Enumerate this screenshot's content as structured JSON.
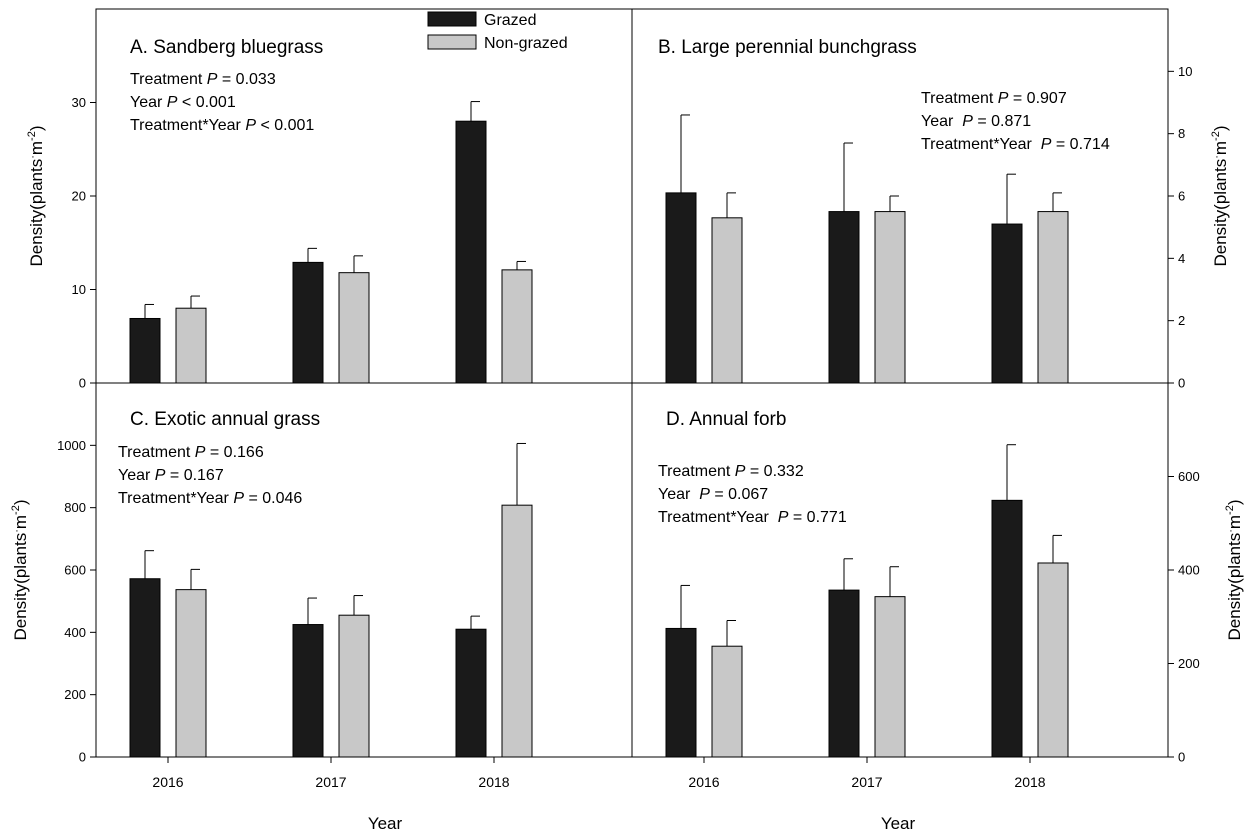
{
  "chart_data": {
    "type": "bar",
    "categories": [
      "2016",
      "2017",
      "2018"
    ],
    "xlabel": "Year",
    "legend": {
      "placement": "top-center of panel A",
      "entries": [
        "Grazed",
        "Non-grazed"
      ]
    },
    "colors": {
      "Grazed": "#1a1a1a",
      "Non-grazed": "#c8c8c8"
    },
    "panels": [
      {
        "title": "A. Sandberg bluegrass",
        "ylabel": "Density(plants·m⁻²)",
        "ylim": [
          0,
          40
        ],
        "yticks": [
          "0",
          "10",
          "20",
          "30"
        ],
        "stats": [
          {
            "prefix": "Treatment ",
            "p": "P",
            "rest": " = 0.033"
          },
          {
            "prefix": "Year ",
            "p": "P",
            "rest": " < 0.001"
          },
          {
            "prefix": "Treatment*Year ",
            "p": "P",
            "rest": " < 0.001"
          }
        ],
        "series": [
          {
            "name": "Grazed",
            "values": [
              6.9,
              12.9,
              28.0
            ],
            "errors": [
              1.5,
              1.5,
              2.1
            ]
          },
          {
            "name": "Non-grazed",
            "values": [
              8.0,
              11.8,
              12.1
            ],
            "errors": [
              1.3,
              1.8,
              0.9
            ]
          }
        ]
      },
      {
        "title": "B. Large perennial bunchgrass",
        "ylabel": "Density(plants·m⁻²)",
        "ylim": [
          0,
          12
        ],
        "yticks": [
          "0",
          "2",
          "4",
          "6",
          "8",
          "10"
        ],
        "stats": [
          {
            "prefix": "Treatment ",
            "p": "P",
            "rest": " = 0.907"
          },
          {
            "prefix": "Year  ",
            "p": "P",
            "rest": " = 0.871"
          },
          {
            "prefix": "Treatment*Year  ",
            "p": "P",
            "rest": " = 0.714"
          }
        ],
        "series": [
          {
            "name": "Grazed",
            "values": [
              6.1,
              5.5,
              5.1
            ],
            "errors": [
              2.5,
              2.2,
              1.6
            ]
          },
          {
            "name": "Non-grazed",
            "values": [
              5.3,
              5.5,
              5.5
            ],
            "errors": [
              0.8,
              0.5,
              0.6
            ]
          }
        ]
      },
      {
        "title": "C. Exotic annual grass",
        "ylabel": "Density(plants·m⁻²)",
        "ylim": [
          0,
          1200
        ],
        "yticks": [
          "0",
          "200",
          "400",
          "600",
          "800",
          "1000"
        ],
        "stats": [
          {
            "prefix": "Treatment ",
            "p": "P",
            "rest": " = 0.166"
          },
          {
            "prefix": "Year ",
            "p": "P",
            "rest": " = 0.167"
          },
          {
            "prefix": "Treatment*Year ",
            "p": "P",
            "rest": " = 0.046"
          }
        ],
        "series": [
          {
            "name": "Grazed",
            "values": [
              572,
              425,
              410
            ],
            "errors": [
              90,
              85,
              42
            ]
          },
          {
            "name": "Non-grazed",
            "values": [
              537,
              455,
              808
            ],
            "errors": [
              65,
              63,
              198
            ]
          }
        ]
      },
      {
        "title": "D. Annual forb",
        "ylabel": "Density(plants·m⁻²)",
        "ylim": [
          0,
          800
        ],
        "yticks": [
          "0",
          "200",
          "400",
          "600"
        ],
        "stats": [
          {
            "prefix": "Treatment ",
            "p": "P",
            "rest": " = 0.332"
          },
          {
            "prefix": "Year  ",
            "p": "P",
            "rest": " = 0.067"
          },
          {
            "prefix": "Treatment*Year  ",
            "p": "P",
            "rest": " = 0.771"
          }
        ],
        "series": [
          {
            "name": "Grazed",
            "values": [
              275,
              357,
              549
            ],
            "errors": [
              92,
              67,
              119
            ]
          },
          {
            "name": "Non-grazed",
            "values": [
              237,
              343,
              415
            ],
            "errors": [
              55,
              64,
              59
            ]
          }
        ]
      }
    ]
  }
}
